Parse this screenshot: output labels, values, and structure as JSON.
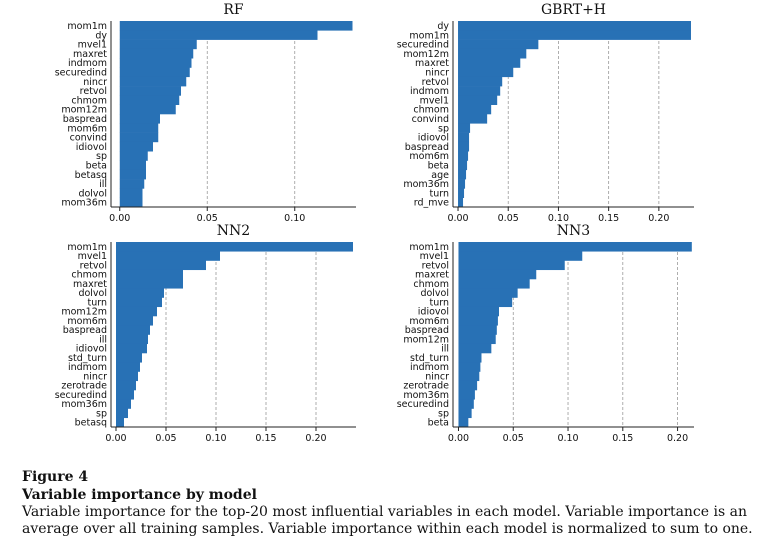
{
  "caption": {
    "label": "Figure 4",
    "title": "Variable importance by model",
    "text": "Variable importance for the top-20 most influential variables in each model. Variable importance is an average over all training samples. Variable importance within each model is normalized to sum to one."
  },
  "chart_data": [
    {
      "type": "bar",
      "orientation": "horizontal",
      "title": "RF",
      "categories": [
        "mom1m",
        "dy",
        "mvel1",
        "maxret",
        "indmom",
        "securedind",
        "nincr",
        "retvol",
        "chmom",
        "mom12m",
        "baspread",
        "mom6m",
        "convind",
        "idiovol",
        "sp",
        "beta",
        "betasq",
        "ill",
        "dolvol",
        "mom36m"
      ],
      "values": [
        0.133,
        0.113,
        0.044,
        0.042,
        0.041,
        0.04,
        0.038,
        0.035,
        0.034,
        0.032,
        0.023,
        0.022,
        0.022,
        0.019,
        0.016,
        0.015,
        0.015,
        0.014,
        0.013,
        0.013
      ],
      "xlim": [
        -0.005,
        0.135
      ],
      "xticks": [
        0.0,
        0.05,
        0.1
      ],
      "xtick_labels": [
        "0.00",
        "0.05",
        "0.10"
      ],
      "bar_color": "#2871b5",
      "grid": "vertical dashed"
    },
    {
      "type": "bar",
      "orientation": "horizontal",
      "title": "GBRT+H",
      "categories": [
        "dy",
        "mom1m",
        "securedind",
        "mom12m",
        "maxret",
        "nincr",
        "retvol",
        "indmom",
        "mvel1",
        "chmom",
        "convind",
        "sp",
        "idiovol",
        "baspread",
        "mom6m",
        "beta",
        "age",
        "mom36m",
        "turn",
        "rd_mve"
      ],
      "values": [
        0.232,
        0.232,
        0.08,
        0.068,
        0.062,
        0.055,
        0.044,
        0.042,
        0.039,
        0.033,
        0.029,
        0.012,
        0.011,
        0.011,
        0.01,
        0.009,
        0.008,
        0.007,
        0.006,
        0.005
      ],
      "xlim": [
        -0.005,
        0.235
      ],
      "xticks": [
        0.0,
        0.05,
        0.1,
        0.15,
        0.2
      ],
      "xtick_labels": [
        "0.00",
        "0.05",
        "0.10",
        "0.15",
        "0.20"
      ],
      "bar_color": "#2871b5",
      "grid": "vertical dashed"
    },
    {
      "type": "bar",
      "orientation": "horizontal",
      "title": "NN2",
      "categories": [
        "mom1m",
        "mvel1",
        "retvol",
        "chmom",
        "maxret",
        "dolvol",
        "turn",
        "mom12m",
        "mom6m",
        "baspread",
        "ill",
        "idiovol",
        "std_turn",
        "indmom",
        "nincr",
        "zerotrade",
        "securedind",
        "mom36m",
        "sp",
        "betasq"
      ],
      "values": [
        0.237,
        0.104,
        0.09,
        0.067,
        0.067,
        0.048,
        0.046,
        0.041,
        0.037,
        0.034,
        0.032,
        0.031,
        0.026,
        0.024,
        0.022,
        0.02,
        0.018,
        0.015,
        0.012,
        0.008
      ],
      "xlim": [
        -0.005,
        0.24
      ],
      "xticks": [
        0.0,
        0.05,
        0.1,
        0.15,
        0.2
      ],
      "xtick_labels": [
        "0.00",
        "0.05",
        "0.10",
        "0.15",
        "0.20"
      ],
      "bar_color": "#2871b5",
      "grid": "vertical dashed"
    },
    {
      "type": "bar",
      "orientation": "horizontal",
      "title": "NN3",
      "categories": [
        "mom1m",
        "mvel1",
        "retvol",
        "maxret",
        "chmom",
        "dolvol",
        "turn",
        "idiovol",
        "mom6m",
        "baspread",
        "mom12m",
        "ill",
        "std_turn",
        "indmom",
        "nincr",
        "zerotrade",
        "mom36m",
        "securedind",
        "sp",
        "beta"
      ],
      "values": [
        0.213,
        0.113,
        0.097,
        0.071,
        0.065,
        0.054,
        0.049,
        0.037,
        0.036,
        0.035,
        0.034,
        0.03,
        0.021,
        0.02,
        0.019,
        0.017,
        0.015,
        0.014,
        0.012,
        0.009
      ],
      "xlim": [
        -0.005,
        0.215
      ],
      "xticks": [
        0.0,
        0.05,
        0.1,
        0.15,
        0.2
      ],
      "xtick_labels": [
        "0.00",
        "0.05",
        "0.10",
        "0.15",
        "0.20"
      ],
      "bar_color": "#2871b5",
      "grid": "vertical dashed"
    }
  ]
}
